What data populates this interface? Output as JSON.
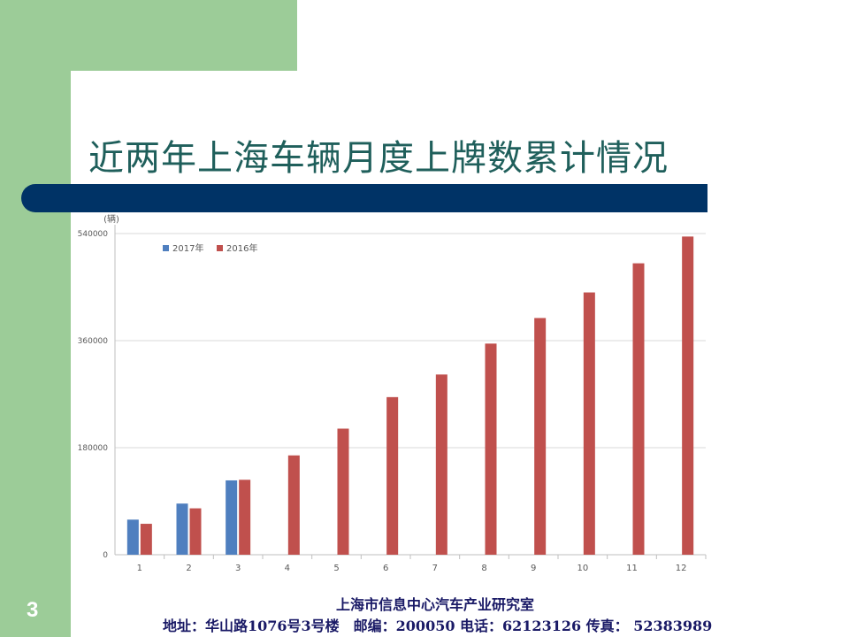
{
  "slide": {
    "title": "近两年上海车辆月度上牌数累计情况",
    "footer_org": "上海市信息中心汽车产业研究室",
    "footer_address": "地址：华山路1076号3号楼　邮编：200050  电话：62123126  传真： 52383989",
    "page_number": "3"
  },
  "colors": {
    "green_bg": "#9ccc98",
    "navy_bar": "#003366",
    "title_text": "#1f5f5b",
    "series_2017": "#4f7fbf",
    "series_2016": "#c0504d"
  },
  "chart_data": {
    "type": "bar",
    "title": "",
    "ylabel": "(辆)",
    "xlabel": "",
    "categories": [
      "1",
      "2",
      "3",
      "4",
      "5",
      "6",
      "7",
      "8",
      "9",
      "10",
      "11",
      "12"
    ],
    "series": [
      {
        "name": "2017年",
        "color": "#4f7fbf",
        "values": [
          59000,
          86000,
          125000,
          null,
          null,
          null,
          null,
          null,
          null,
          null,
          null,
          null
        ]
      },
      {
        "name": "2016年",
        "color": "#c0504d",
        "values": [
          52000,
          78000,
          126000,
          167000,
          212000,
          265000,
          303000,
          355000,
          398000,
          441000,
          490000,
          535000
        ]
      }
    ],
    "ylim": [
      0,
      540000
    ],
    "yticks": [
      0,
      180000,
      360000,
      540000
    ],
    "grid": true,
    "legend_position": "top-left"
  }
}
